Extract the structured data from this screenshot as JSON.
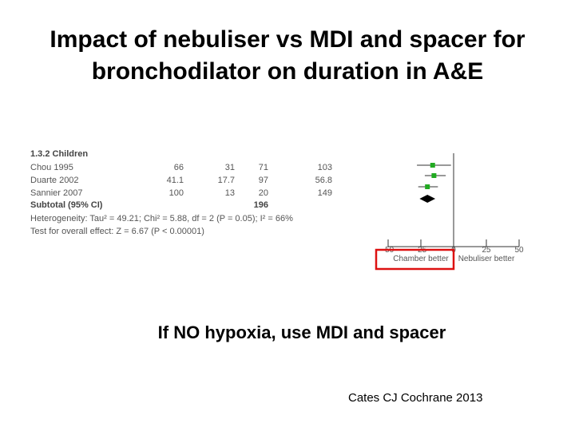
{
  "slide": {
    "title_line1": "Impact of nebuliser vs MDI and spacer for",
    "title_line2": "bronchodilator on duration in A&E",
    "message": "If NO hypoxia, use MDI and spacer",
    "citation": "Cates CJ Cochrane 2013"
  },
  "forest_plot": {
    "section_label": "1.3.2 Children",
    "heterogeneity": "Heterogeneity: Tau² = 49.21; Chi² = 5.88, df = 2 (P = 0.05); I² = 66%",
    "overall_effect": "Test for overall effect: Z = 6.67 (P < 0.00001)",
    "colors": {
      "text": "#555555",
      "marker": "#22aa22",
      "highlight": "#dd1111"
    }
  },
  "chart_data": {
    "type": "scatter",
    "title": "",
    "xlabel": "",
    "xlim": [
      -50,
      50
    ],
    "x_ticks": [
      -50,
      -25,
      0,
      25,
      50
    ],
    "left_label": "Chamber better",
    "right_label": "Nebuliser better",
    "studies": [
      {
        "name": "Chou 1995",
        "col1": "66",
        "col2": "31",
        "col3": "71",
        "col4": "103",
        "estimate": -16,
        "ci": [
          -28,
          -2
        ]
      },
      {
        "name": "Duarte 2002",
        "col1": "41.1",
        "col2": "17.7",
        "col3": "97",
        "col4": "56.8",
        "estimate": -15,
        "ci": [
          -22,
          -6
        ]
      },
      {
        "name": "Sannier 2007",
        "col1": "100",
        "col2": "13",
        "col3": "20",
        "col4": "149",
        "estimate": -20,
        "ci": [
          -27,
          -12
        ]
      }
    ],
    "subtotal": {
      "name": "Subtotal (95% CI)",
      "total": "196",
      "estimate": -20,
      "ci": [
        -26,
        -14
      ]
    }
  }
}
